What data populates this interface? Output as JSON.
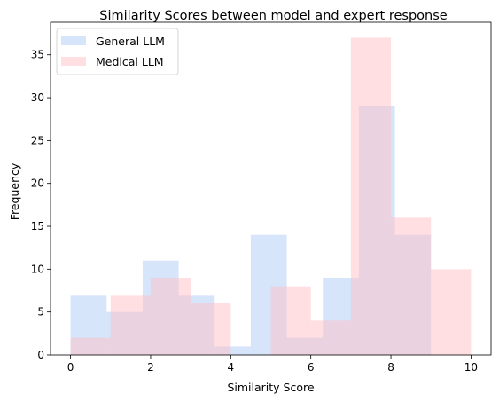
{
  "chart_data": {
    "type": "bar",
    "title": "Similarity Scores between model and expert response",
    "xlabel": "Similarity Score",
    "ylabel": "Frequency",
    "xlim": [
      -0.5,
      10.5
    ],
    "ylim": [
      0,
      38.8
    ],
    "xticks": [
      0,
      2,
      4,
      6,
      8,
      10
    ],
    "yticks": [
      0,
      5,
      10,
      15,
      20,
      25,
      30,
      35
    ],
    "grid": false,
    "legend_position": "top-left",
    "series": [
      {
        "name": "General LLM",
        "color": "#aecbf5",
        "opacity": 0.5,
        "bins": [
          {
            "x0": 0.0,
            "x1": 0.9,
            "value": 7
          },
          {
            "x0": 0.9,
            "x1": 1.8,
            "value": 5
          },
          {
            "x0": 1.8,
            "x1": 2.7,
            "value": 11
          },
          {
            "x0": 2.7,
            "x1": 3.6,
            "value": 7
          },
          {
            "x0": 3.6,
            "x1": 4.5,
            "value": 1
          },
          {
            "x0": 4.5,
            "x1": 5.4,
            "value": 14
          },
          {
            "x0": 5.4,
            "x1": 6.3,
            "value": 2
          },
          {
            "x0": 6.3,
            "x1": 7.2,
            "value": 9
          },
          {
            "x0": 7.2,
            "x1": 8.1,
            "value": 29
          },
          {
            "x0": 8.1,
            "x1": 9.0,
            "value": 14
          }
        ]
      },
      {
        "name": "Medical LLM",
        "color": "#ffc0c5",
        "opacity": 0.5,
        "bins": [
          {
            "x0": 0.0,
            "x1": 1.0,
            "value": 2
          },
          {
            "x0": 1.0,
            "x1": 2.0,
            "value": 7
          },
          {
            "x0": 2.0,
            "x1": 3.0,
            "value": 9
          },
          {
            "x0": 3.0,
            "x1": 4.0,
            "value": 6
          },
          {
            "x0": 4.0,
            "x1": 5.0,
            "value": 0
          },
          {
            "x0": 5.0,
            "x1": 6.0,
            "value": 8
          },
          {
            "x0": 6.0,
            "x1": 7.0,
            "value": 4
          },
          {
            "x0": 7.0,
            "x1": 8.0,
            "value": 37
          },
          {
            "x0": 8.0,
            "x1": 9.0,
            "value": 16
          },
          {
            "x0": 9.0,
            "x1": 10.0,
            "value": 10
          }
        ]
      }
    ]
  }
}
